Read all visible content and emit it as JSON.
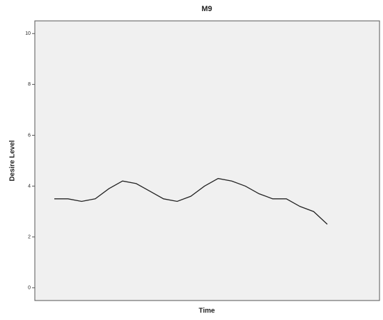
{
  "chart_data": {
    "type": "line",
    "title": "M9",
    "x_label": "Time",
    "y_label": "Desire Level",
    "categories": [
      null,
      null,
      null,
      null,
      null,
      null,
      null,
      null,
      null,
      null,
      null,
      null,
      null,
      null,
      null,
      null,
      null,
      null,
      null,
      null,
      null
    ],
    "series": [
      {
        "color": "#222222",
        "values": [
          3.5,
          3.5,
          3.4,
          3.5,
          3.9,
          4.2,
          4.1,
          3.8,
          3.5,
          3.4,
          3.6,
          4.0,
          4.3,
          4.2,
          4.0,
          3.7,
          3.5,
          3.5,
          3.2,
          3.0,
          2.5
        ]
      }
    ],
    "ylim": [
      -0.5,
      10.5
    ],
    "yticks": [
      0,
      2,
      4,
      6,
      8,
      10
    ]
  }
}
